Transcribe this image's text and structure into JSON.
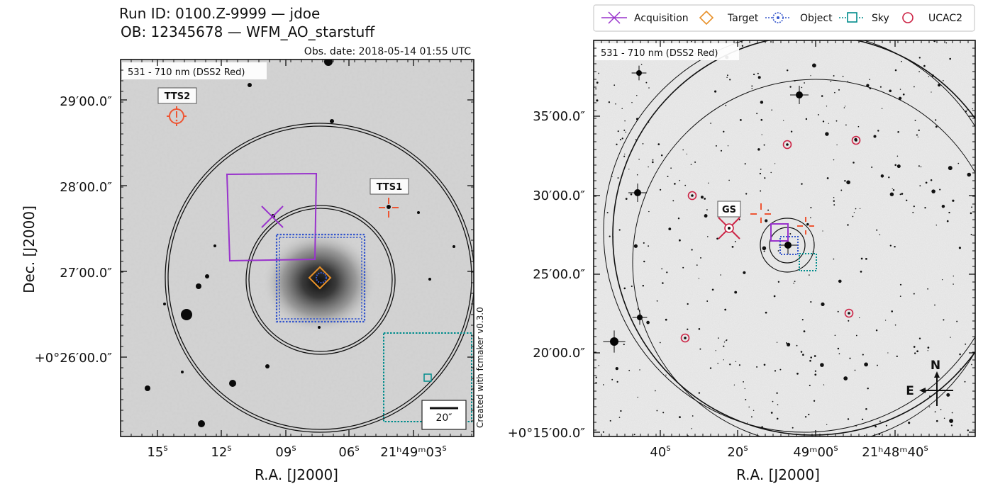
{
  "header": {
    "run_line": "Run ID: 0100.Z-9999 — jdoe",
    "ob_line": "OB: 12345678 — WFM_AO_starstuff",
    "obs_date": "Obs. date: 2018-05-14 01:55 UTC"
  },
  "credit": "Created with fcmaker v0.3.0",
  "legend": {
    "items": [
      {
        "label": "Acquisition",
        "color": "#9933cc",
        "icon": "cross-icon"
      },
      {
        "label": "Target",
        "color": "#e8912a",
        "icon": "diamond-icon"
      },
      {
        "label": "Object",
        "color": "#3355cc",
        "icon": "circle-dot-icon"
      },
      {
        "label": "Sky",
        "color": "#008c8c",
        "icon": "square-icon"
      },
      {
        "label": "UCAC2",
        "color": "#cc2244",
        "icon": "circle-icon"
      }
    ]
  },
  "left_panel": {
    "image_label": "531 - 710 nm (DSS2 Red)",
    "ylabel": "Dec. [J2000]",
    "xlabel": "R.A. [J2000]",
    "yticks": [
      "29′00.0″",
      "28′00.0″",
      "27′00.0″",
      "+0°26′00.0″"
    ],
    "xticks": [
      {
        "label": "15",
        "sup": "s"
      },
      {
        "label": "12",
        "sup": "s"
      },
      {
        "label": "09",
        "sup": "s"
      },
      {
        "label": "06",
        "sup": "s"
      },
      {
        "label": "21ʰ49ᵐ03",
        "sup": "s"
      }
    ],
    "markers": {
      "tts1": "TTS1",
      "tts2": "TTS2"
    },
    "scale_bar": "20″"
  },
  "right_panel": {
    "image_label": "531 - 710 nm (DSS2 Red)",
    "xlabel": "R.A. [J2000]",
    "yticks": [
      "35′00.0″",
      "30′00.0″",
      "25′00.0″",
      "20′00.0″",
      "+0°15′00.0″"
    ],
    "xticks": [
      {
        "label": "40",
        "sup": "s"
      },
      {
        "label": "20",
        "sup": "s"
      },
      {
        "label": "49ᵐ00",
        "sup": "s"
      },
      {
        "label": "21ʰ48ᵐ40",
        "sup": "s"
      }
    ],
    "markers": {
      "gs": "GS"
    },
    "compass": {
      "north": "N",
      "east": "E"
    }
  }
}
